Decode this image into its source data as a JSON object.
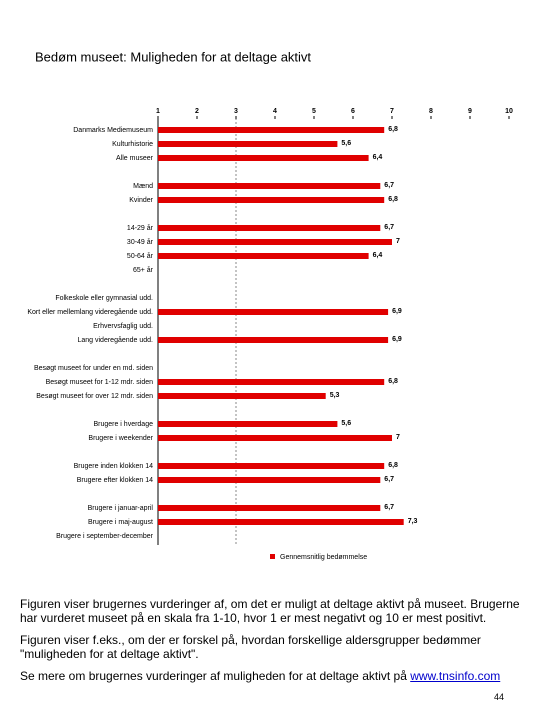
{
  "chart_data": {
    "type": "bar",
    "title": "Bedøm museet: Muligheden for at deltage aktivt",
    "categories": [
      "Danmarks Mediemuseum",
      "Kulturhistorie",
      "Alle museer",
      null,
      "Mænd",
      "Kvinder",
      null,
      "14-29 år",
      "30-49 år",
      "50-64 år",
      "65+ år",
      null,
      "Folkeskole eller gymnasial udd.",
      "Kort eller mellemlang videregående udd.",
      "Erhvervsfaglig udd.",
      "Lang videregående udd.",
      null,
      "Besøgt museet for under en md. siden",
      "Besøgt museet for 1-12 mdr. siden",
      "Besøgt museet for over 12 mdr. siden",
      null,
      "Brugere i hverdage",
      "Brugere i weekender",
      null,
      "Brugere inden klokken 14",
      "Brugere efter klokken 14",
      null,
      "Brugere i januar-april",
      "Brugere i maj-august",
      "Brugere i september-december"
    ],
    "series": [
      {
        "name": "Gennemsnitlig bedømmelse",
        "color": "#e00000",
        "values": [
          6.8,
          5.6,
          6.4,
          null,
          6.7,
          6.8,
          null,
          6.7,
          7,
          6.4,
          null,
          null,
          null,
          6.9,
          null,
          6.9,
          null,
          null,
          6.8,
          5.3,
          null,
          5.6,
          7,
          null,
          6.8,
          6.7,
          null,
          6.7,
          7.3,
          null
        ],
        "value_labels": [
          "6,8",
          "5,6",
          "6,4",
          null,
          "6,7",
          "6,8",
          null,
          "6,7",
          "7",
          "6,4",
          null,
          null,
          null,
          "6,9",
          null,
          "6,9",
          null,
          null,
          "6,8",
          "5,3",
          null,
          "5,6",
          "7",
          null,
          "6,8",
          "6,7",
          null,
          "6,7",
          "7,3",
          null
        ]
      }
    ],
    "xlim": [
      1,
      10
    ],
    "xticks": [
      1,
      2,
      3,
      4,
      5,
      6,
      7,
      8,
      9,
      10
    ]
  },
  "text": {
    "paragraph_1": "Figuren viser brugernes vurderinger af, om det er muligt at deltage aktivt på museet. Brugerne har vurderet museet på en skala fra 1-10, hvor 1 er mest negativt og 10 er mest positivt.",
    "paragraph_2": "Figuren viser f.eks., om der er forskel på, hvordan forskellige aldersgrupper bedømmer \"muligheden for at deltage aktivt\".",
    "paragraph_3": "Se mere om brugernes vurderinger af muligheden for at deltage aktivt på ",
    "link": "www.tnsinfo.com",
    "page_number": "44"
  }
}
